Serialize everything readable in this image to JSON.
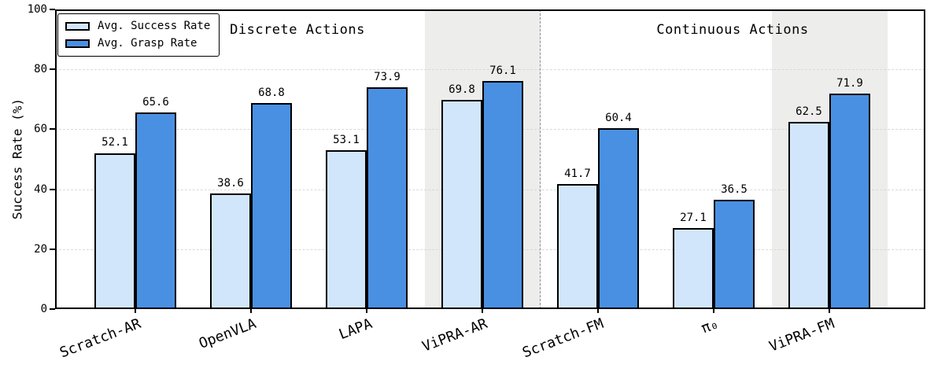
{
  "chart_data": {
    "type": "bar",
    "title": "",
    "ylabel": "Success Rate (%)",
    "ylim": [
      0,
      100
    ],
    "yticks": [
      0,
      20,
      40,
      60,
      80,
      100
    ],
    "grid": "horizontal dashed",
    "legend_position": "upper left",
    "categories": [
      "Scratch-AR",
      "OpenVLA",
      "LAPA",
      "ViPRA-AR",
      "Scratch-FM",
      "π₀",
      "ViPRA-FM"
    ],
    "series": [
      {
        "name": "Avg. Success Rate",
        "color": "#d2e6fb",
        "values": [
          52.1,
          38.6,
          53.1,
          69.8,
          41.7,
          27.1,
          62.5
        ]
      },
      {
        "name": "Avg. Grasp Rate",
        "color": "#4a90e2",
        "values": [
          65.6,
          68.8,
          73.9,
          76.1,
          60.4,
          36.5,
          71.9
        ]
      }
    ],
    "bar_edge_color": "#000000",
    "highlighted_categories": [
      3,
      6
    ],
    "highlight_band_color": "#ededec",
    "separator_after_category": 3,
    "section_annotations": [
      {
        "label": "Discrete Actions",
        "span": [
          0,
          3
        ]
      },
      {
        "label": "Continuous Actions",
        "span": [
          4,
          6
        ]
      }
    ]
  }
}
